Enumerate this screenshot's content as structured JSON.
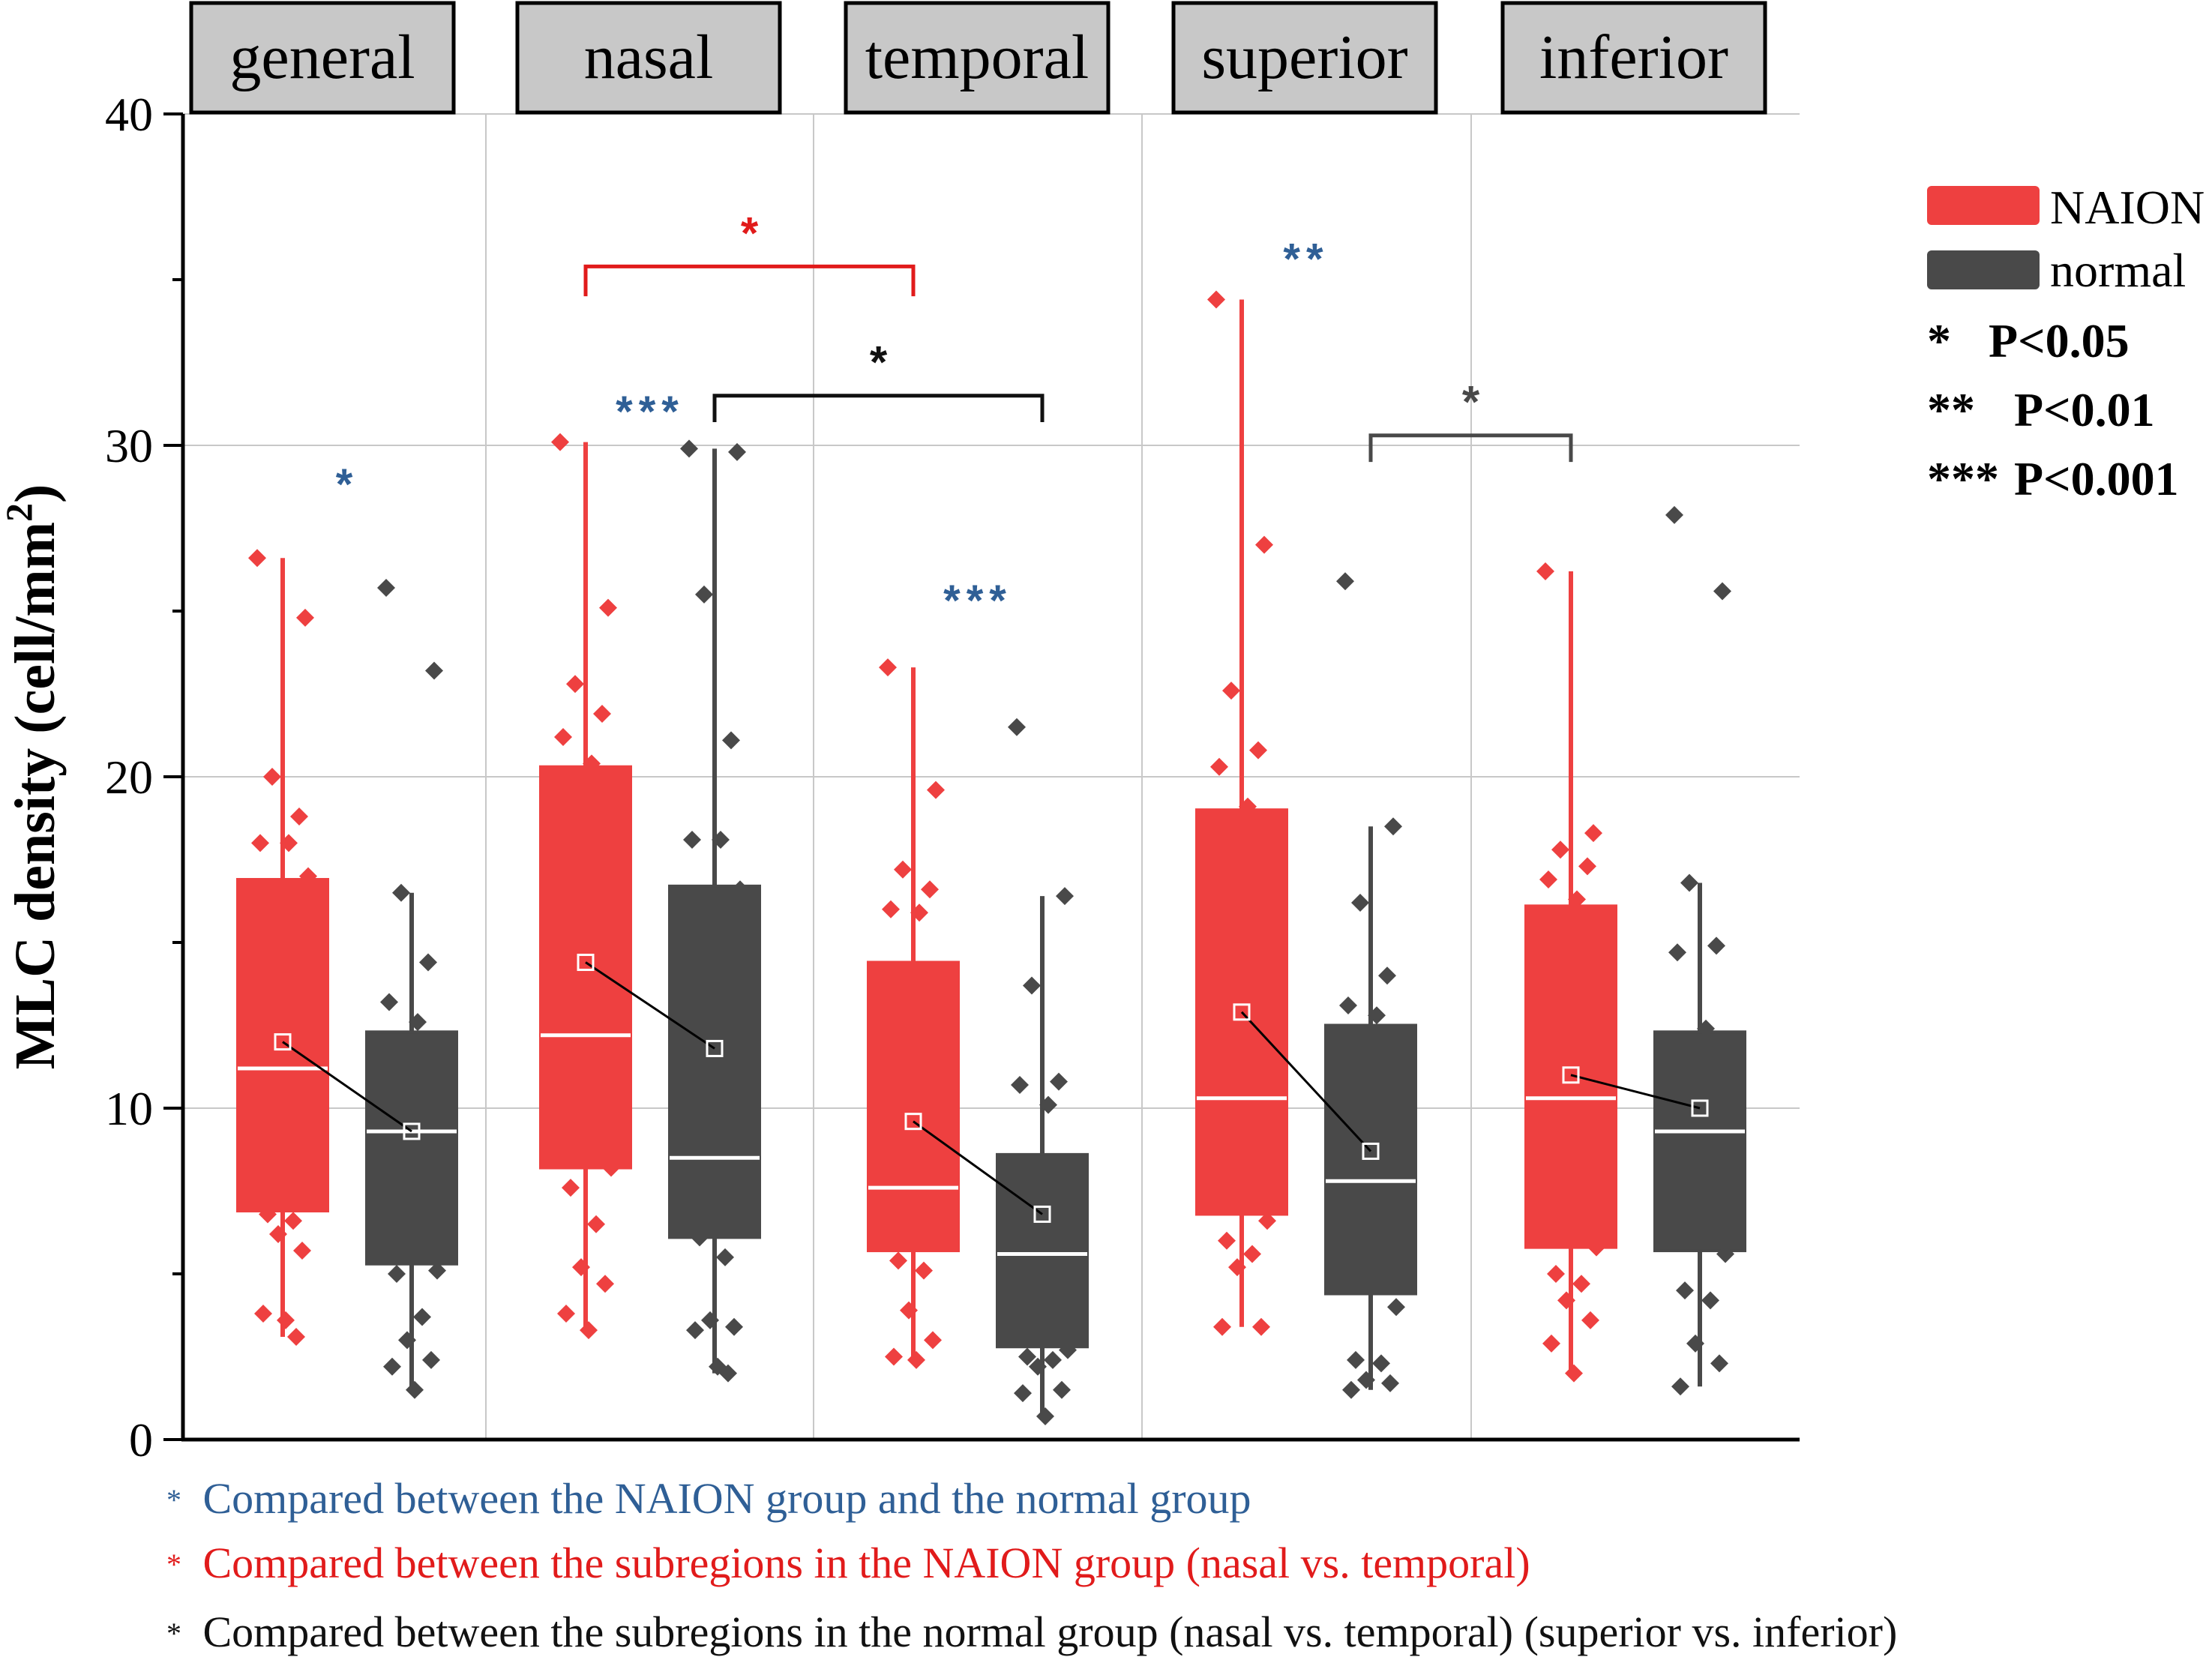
{
  "colors": {
    "naion": "#ee4040",
    "normal": "#494949",
    "blue": "#2f5f96",
    "red": "#e11b1b",
    "black": "#111111",
    "grid": "#c8c8c8",
    "strip": "#c8c8c8"
  },
  "chart_data": {
    "type": "box",
    "ylabel": "MLC density (cell/mm",
    "ylabel_sup": "2",
    "ylabel_close": ")",
    "ylim": [
      0,
      40
    ],
    "yticks": [
      "0",
      "10",
      "20",
      "30",
      "40"
    ],
    "panels": [
      "general",
      "nasal",
      "temporal",
      "superior",
      "inferior"
    ],
    "series": [
      {
        "name": "NAION",
        "color_key": "naion",
        "boxes": [
          {
            "q1": 6.9,
            "median": 11.2,
            "q3": 16.9,
            "mean": 12.0,
            "whisker_low": 3.1,
            "whisker_high": 26.6,
            "points": [
              26.6,
              24.8,
              20.0,
              18.8,
              18.0,
              18.0,
              17.0,
              6.8,
              6.6,
              6.2,
              5.7,
              3.8,
              3.6,
              3.1
            ]
          },
          {
            "q1": 8.2,
            "median": 12.2,
            "q3": 20.3,
            "mean": 14.4,
            "whisker_low": 3.2,
            "whisker_high": 30.1,
            "points": [
              30.1,
              25.1,
              22.8,
              21.9,
              21.2,
              20.4,
              8.2,
              7.6,
              6.5,
              5.2,
              4.7,
              3.8,
              3.3
            ]
          },
          {
            "q1": 5.7,
            "median": 7.6,
            "q3": 14.4,
            "mean": 9.6,
            "whisker_low": 2.4,
            "whisker_high": 23.3,
            "points": [
              23.3,
              19.6,
              17.2,
              16.6,
              16.0,
              15.9,
              6.2,
              5.4,
              5.1,
              3.9,
              3.0,
              2.5,
              2.4
            ]
          },
          {
            "q1": 6.8,
            "median": 10.3,
            "q3": 19.0,
            "mean": 12.9,
            "whisker_low": 3.4,
            "whisker_high": 34.4,
            "points": [
              34.4,
              27.0,
              22.6,
              20.8,
              20.3,
              19.1,
              6.6,
              6.0,
              5.6,
              5.2,
              3.4,
              3.4
            ]
          },
          {
            "q1": 5.8,
            "median": 10.3,
            "q3": 16.1,
            "mean": 11.0,
            "whisker_low": 2.0,
            "whisker_high": 26.2,
            "points": [
              26.2,
              18.3,
              17.8,
              17.3,
              16.9,
              16.3,
              5.8,
              5.0,
              4.7,
              4.2,
              3.6,
              2.9,
              2.0
            ]
          }
        ]
      },
      {
        "name": "normal",
        "color_key": "normal",
        "boxes": [
          {
            "q1": 5.3,
            "median": 9.3,
            "q3": 12.3,
            "mean": 9.3,
            "whisker_low": 1.5,
            "whisker_high": 16.5,
            "points": [
              25.7,
              23.2,
              16.5,
              14.4,
              13.2,
              12.6,
              5.1,
              5.0,
              3.7,
              3.0,
              2.4,
              2.2,
              1.5
            ]
          },
          {
            "q1": 6.1,
            "median": 8.5,
            "q3": 16.7,
            "mean": 11.8,
            "whisker_low": 2.0,
            "whisker_high": 29.9,
            "points": [
              29.9,
              29.8,
              25.5,
              21.1,
              18.1,
              18.1,
              16.6,
              6.1,
              5.5,
              3.6,
              3.4,
              3.3,
              2.2,
              2.0
            ]
          },
          {
            "q1": 2.8,
            "median": 5.6,
            "q3": 8.6,
            "mean": 6.8,
            "whisker_low": 0.7,
            "whisker_high": 16.4,
            "points": [
              21.5,
              16.4,
              13.7,
              10.8,
              10.7,
              10.1,
              2.7,
              2.5,
              2.4,
              2.2,
              1.5,
              1.4,
              0.7
            ]
          },
          {
            "q1": 4.4,
            "median": 7.8,
            "q3": 12.5,
            "mean": 8.7,
            "whisker_low": 1.5,
            "whisker_high": 18.5,
            "points": [
              25.9,
              18.5,
              16.2,
              14.0,
              13.1,
              12.8,
              4.0,
              2.4,
              2.3,
              1.8,
              1.7,
              1.5
            ]
          },
          {
            "q1": 5.7,
            "median": 9.3,
            "q3": 12.3,
            "mean": 10.0,
            "whisker_low": 1.6,
            "whisker_high": 16.8,
            "points": [
              27.9,
              25.6,
              16.8,
              14.9,
              14.7,
              12.4,
              5.6,
              4.5,
              4.2,
              2.9,
              2.3,
              1.6
            ]
          }
        ]
      }
    ],
    "comparisons": [
      {
        "type": "within",
        "panel": 0,
        "label": "*",
        "color_key": "blue",
        "y": 29.0
      },
      {
        "type": "within",
        "panel": 1,
        "label": "***",
        "color_key": "blue",
        "y": 31.2
      },
      {
        "type": "within",
        "panel": 2,
        "label": "***",
        "color_key": "blue",
        "y": 25.5
      },
      {
        "type": "within",
        "panel": 3,
        "label": "**",
        "color_key": "blue",
        "y": 35.8
      },
      {
        "type": "bracket",
        "from_panel": 1,
        "from_series": 0,
        "to_panel": 2,
        "to_series": 0,
        "label": "*",
        "color_key": "red",
        "y": 35.4,
        "drop": 0.9
      },
      {
        "type": "bracket",
        "from_panel": 1,
        "from_series": 1,
        "to_panel": 2,
        "to_series": 1,
        "label": "*",
        "color_key": "black",
        "y": 31.5,
        "drop": 0.8
      },
      {
        "type": "bracket",
        "from_panel": 3,
        "from_series": 1,
        "to_panel": 4,
        "to_series": 0,
        "label": "*",
        "color_key": "normal",
        "y": 30.3,
        "drop": 0.8
      }
    ]
  },
  "legend": {
    "items": [
      {
        "label": "NAION",
        "color_key": "naion"
      },
      {
        "label": "normal",
        "color_key": "normal"
      }
    ],
    "significance": [
      {
        "stars": "*",
        "text": "P<0.05"
      },
      {
        "stars": "**",
        "text": "P<0.01"
      },
      {
        "stars": "***",
        "text": "P<0.001"
      }
    ]
  },
  "footnotes": [
    {
      "star": "*",
      "text": "Compared between the NAION group and the normal group",
      "color_key": "blue"
    },
    {
      "star": "*",
      "text": "Compared between the subregions in the NAION group (nasal vs. temporal)",
      "color_key": "red"
    },
    {
      "star": "*",
      "text": "Compared between the subregions in the normal group (nasal vs. temporal) (superior vs. inferior)",
      "color_key": "black"
    }
  ]
}
